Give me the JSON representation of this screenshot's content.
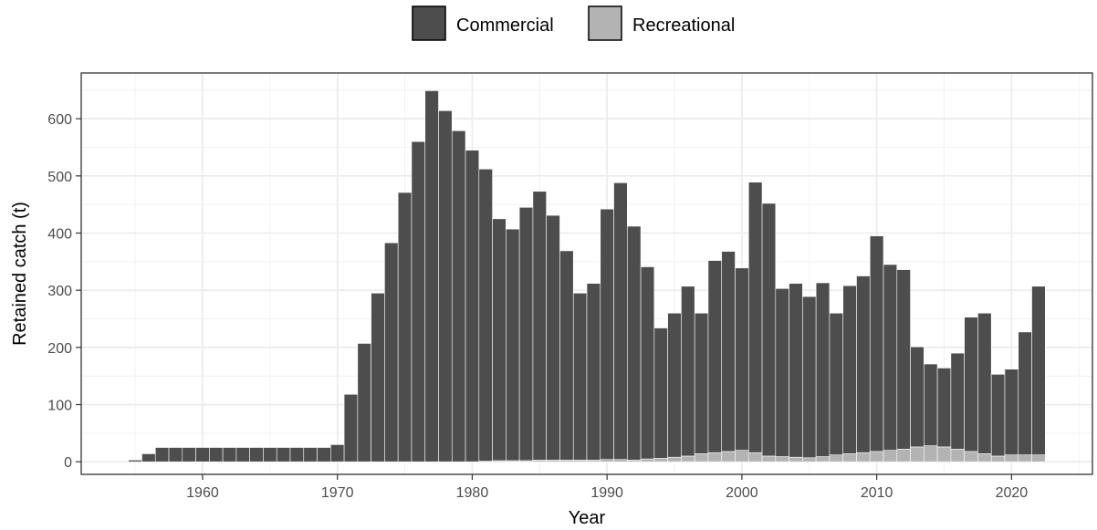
{
  "chart_data": {
    "type": "bar",
    "stacked": true,
    "xlabel": "Year",
    "ylabel": "Retained catch (t)",
    "xlim": [
      1951,
      2026
    ],
    "ylim": [
      -22,
      680
    ],
    "x_ticks": [
      1960,
      1970,
      1980,
      1990,
      2000,
      2010,
      2020
    ],
    "y_ticks": [
      0,
      100,
      200,
      300,
      400,
      500,
      600
    ],
    "grid": true,
    "legend_position": "top",
    "colors": {
      "Commercial": "#4d4d4d",
      "Recreational": "#b3b3b3"
    },
    "years": [
      1955,
      1956,
      1957,
      1958,
      1959,
      1960,
      1961,
      1962,
      1963,
      1964,
      1965,
      1966,
      1967,
      1968,
      1969,
      1970,
      1971,
      1972,
      1973,
      1974,
      1975,
      1976,
      1977,
      1978,
      1979,
      1980,
      1981,
      1982,
      1983,
      1984,
      1985,
      1986,
      1987,
      1988,
      1989,
      1990,
      1991,
      1992,
      1993,
      1994,
      1995,
      1996,
      1997,
      1998,
      1999,
      2000,
      2001,
      2002,
      2003,
      2004,
      2005,
      2006,
      2007,
      2008,
      2009,
      2010,
      2011,
      2012,
      2013,
      2014,
      2015,
      2016,
      2017,
      2018,
      2019,
      2020,
      2021,
      2022
    ],
    "series": [
      {
        "name": "Recreational",
        "values": [
          0,
          0,
          0,
          0,
          0,
          0,
          0,
          0,
          0,
          0,
          0,
          0,
          0,
          0,
          0,
          0,
          0,
          0,
          0,
          0,
          0,
          0,
          0,
          0,
          0,
          0,
          1,
          2,
          2,
          2,
          3,
          3,
          3,
          3,
          3,
          4,
          4,
          3,
          5,
          6,
          8,
          10,
          14,
          16,
          18,
          20,
          16,
          10,
          9,
          8,
          7,
          9,
          12,
          14,
          16,
          18,
          20,
          22,
          26,
          28,
          26,
          22,
          18,
          14,
          10,
          12,
          12,
          12
        ]
      },
      {
        "name": "Commercial",
        "values": [
          3,
          14,
          25,
          25,
          25,
          25,
          25,
          25,
          25,
          25,
          25,
          25,
          25,
          25,
          25,
          30,
          118,
          207,
          295,
          383,
          471,
          560,
          649,
          614,
          579,
          545,
          511,
          423,
          405,
          443,
          470,
          428,
          366,
          292,
          309,
          438,
          484,
          409,
          336,
          228,
          252,
          297,
          246,
          336,
          350,
          319,
          473,
          442,
          294,
          304,
          282,
          304,
          248,
          294,
          309,
          377,
          325,
          314,
          175,
          143,
          138,
          168,
          235,
          246,
          143,
          150,
          215,
          295
        ]
      }
    ]
  },
  "legend": [
    {
      "label": "Commercial",
      "color": "#4d4d4d"
    },
    {
      "label": "Recreational",
      "color": "#b3b3b3"
    }
  ]
}
